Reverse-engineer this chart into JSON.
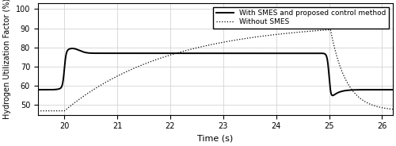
{
  "xlabel": "Time (s)",
  "ylabel": "Hydrogen Utilization Factor (%)",
  "xlim": [
    19.5,
    26.2
  ],
  "ylim": [
    45,
    103
  ],
  "yticks": [
    50,
    60,
    70,
    80,
    90,
    100
  ],
  "xticks": [
    20,
    21,
    22,
    23,
    24,
    25,
    26
  ],
  "legend_with_smes": "With SMES and proposed control method",
  "legend_without_smes": "Without SMES",
  "background_color": "#ffffff",
  "grid_color": "#cccccc",
  "line_color": "#000000",
  "with_smes_pre": 58.0,
  "with_smes_mid": 77.0,
  "with_smes_post": 58.0,
  "without_smes_pre": 47.0,
  "without_smes_max": 93.0,
  "without_smes_post": 47.0
}
